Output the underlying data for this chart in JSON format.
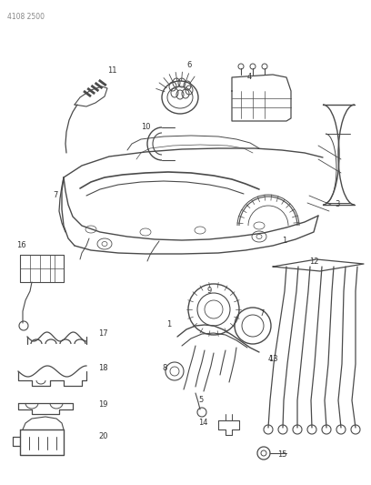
{
  "title": "4108 2500",
  "bg_color": "#ffffff",
  "lc": "#4a4a4a",
  "fig_width": 4.08,
  "fig_height": 5.33,
  "dpi": 100
}
